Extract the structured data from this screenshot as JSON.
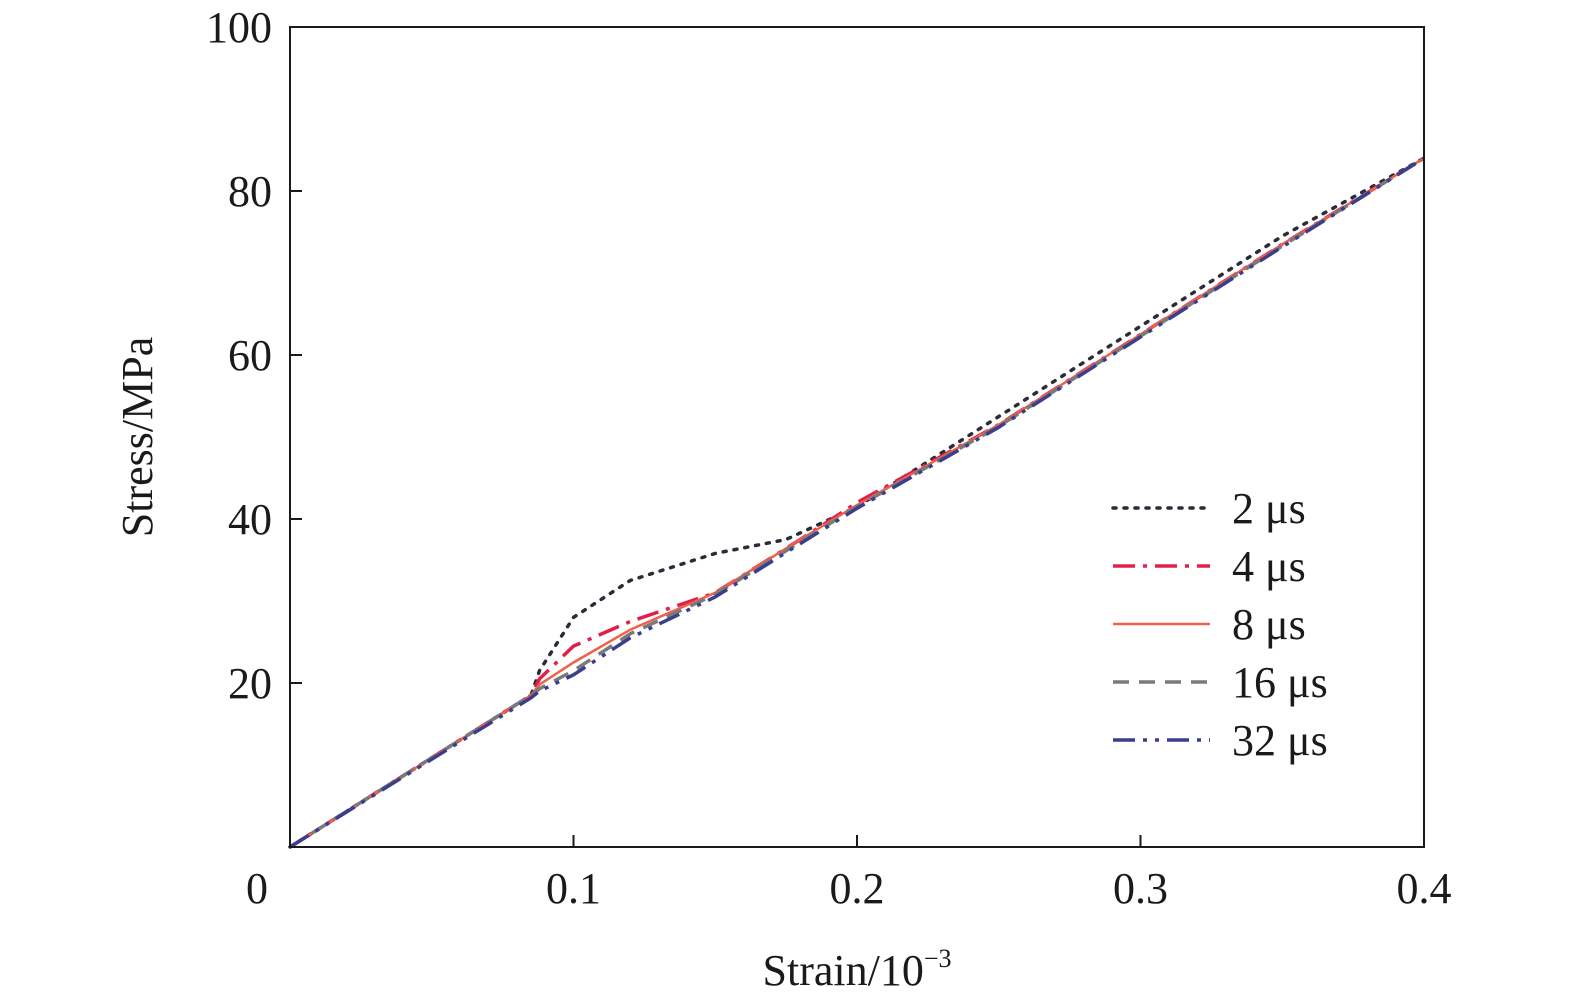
{
  "chart_data": {
    "type": "line",
    "xlabel": "Strain/10",
    "xlabel_exponent": "−3",
    "ylabel": "Stress/MPa",
    "xlim": [
      0,
      0.4
    ],
    "ylim": [
      0,
      100
    ],
    "x_ticks": [
      0.1,
      0.2,
      0.3,
      0.4
    ],
    "x_tick_labels": [
      "0.1",
      "0.2",
      "0.3",
      "0.4"
    ],
    "origin_label": "0",
    "y_ticks": [
      20,
      40,
      60,
      80,
      100
    ],
    "y_tick_labels": [
      "20",
      "40",
      "60",
      "80",
      "100"
    ],
    "grid": false,
    "legend_position": "right-center",
    "series": [
      {
        "name": "2 μs",
        "color": "#2b2b3a",
        "dash": "dotted",
        "x": [
          0,
          0.085,
          0.088,
          0.1,
          0.12,
          0.15,
          0.175,
          0.2,
          0.25,
          0.3,
          0.35,
          0.4
        ],
        "y": [
          0,
          18.5,
          21.5,
          28,
          32.5,
          35.8,
          37.5,
          41.5,
          52.5,
          63.5,
          74.5,
          84
        ]
      },
      {
        "name": "4 μs",
        "color": "#e0204a",
        "dash": "dashdot",
        "x": [
          0,
          0.085,
          0.088,
          0.1,
          0.12,
          0.15,
          0.18,
          0.2,
          0.25,
          0.3,
          0.35,
          0.4
        ],
        "y": [
          0,
          18.5,
          20.5,
          24.5,
          27.5,
          31,
          37.5,
          42,
          51.5,
          62.5,
          73.5,
          84
        ]
      },
      {
        "name": "8 μs",
        "color": "#f0604a",
        "dash": "solid",
        "x": [
          0,
          0.085,
          0.088,
          0.1,
          0.12,
          0.15,
          0.18,
          0.2,
          0.25,
          0.3,
          0.35,
          0.4
        ],
        "y": [
          0,
          18.5,
          19.8,
          22.5,
          26.5,
          31,
          37.5,
          41.7,
          51.5,
          62.5,
          73.5,
          84
        ]
      },
      {
        "name": "16 μs",
        "color": "#7a7a7a",
        "dash": "dashed",
        "x": [
          0,
          0.085,
          0.088,
          0.1,
          0.12,
          0.15,
          0.18,
          0.2,
          0.25,
          0.3,
          0.35,
          0.4
        ],
        "y": [
          0,
          18.5,
          19.3,
          21.5,
          26,
          30.8,
          37.2,
          41.5,
          51.3,
          62.3,
          73.3,
          84
        ]
      },
      {
        "name": "32 μs",
        "color": "#3a3f8c",
        "dash": "dashdotdot",
        "x": [
          0,
          0.085,
          0.088,
          0.1,
          0.12,
          0.15,
          0.18,
          0.2,
          0.25,
          0.3,
          0.35,
          0.4
        ],
        "y": [
          0,
          18.2,
          19,
          21,
          25.5,
          30.5,
          37,
          41.3,
          51.2,
          62.2,
          73.2,
          84
        ]
      }
    ]
  }
}
